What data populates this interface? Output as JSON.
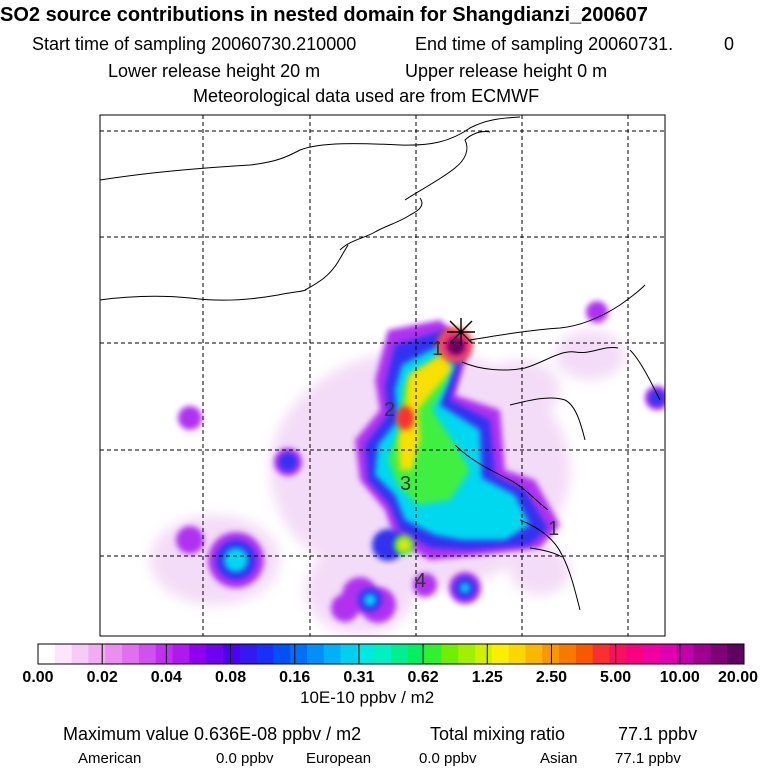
{
  "header": {
    "title": "SO2 source contributions in nested domain for Shangdianzi_200607",
    "start_label": "Start time of sampling 20060730.210000",
    "end_label": "End time of sampling 20060731.",
    "end_hour": "0",
    "lower_label": "Lower release height   20 m",
    "upper_label": "Upper release height    0 m",
    "met_label": "Meteorological data used are from ECMWF"
  },
  "map": {
    "contour_labels": [
      "1",
      "2",
      "3",
      "4",
      "1"
    ],
    "receptor_marker": "cross-icon"
  },
  "colorbar": {
    "tick_labels": [
      "0.00",
      "0.02",
      "0.04",
      "0.08",
      "0.16",
      "0.31",
      "0.62",
      "1.25",
      "2.50",
      "5.00",
      "10.00",
      "20.00"
    ],
    "colors": [
      "#ffffff",
      "#fbe6fb",
      "#f6ccf6",
      "#f0aef0",
      "#ea8ef0",
      "#e070f0",
      "#d050f0",
      "#c030f0",
      "#b018f0",
      "#9000f0",
      "#7000f0",
      "#5000f0",
      "#3818f0",
      "#1830f8",
      "#0050f8",
      "#0070f8",
      "#0090f8",
      "#00b0f8",
      "#00d0f0",
      "#00e8e0",
      "#00f0c0",
      "#00f090",
      "#00f060",
      "#30f030",
      "#70f000",
      "#a0f000",
      "#d0f000",
      "#f8f000",
      "#f8d800",
      "#f8b800",
      "#f89800",
      "#f87800",
      "#f85800",
      "#f83030",
      "#f81060",
      "#f80080",
      "#f000a0",
      "#e000b0",
      "#c000a8",
      "#a00090",
      "#800078",
      "#600060"
    ],
    "units": "10E-10 ppbv / m2"
  },
  "footer": {
    "max_value": "Maximum value  0.636E-08 ppbv / m2",
    "total_label": "Total mixing ratio",
    "total_value": "77.1 ppbv",
    "regions": [
      {
        "name": "American",
        "value": "0.0 ppbv"
      },
      {
        "name": "European",
        "value": "0.0 ppbv"
      },
      {
        "name": "Asian",
        "value": "77.1 ppbv"
      }
    ]
  }
}
